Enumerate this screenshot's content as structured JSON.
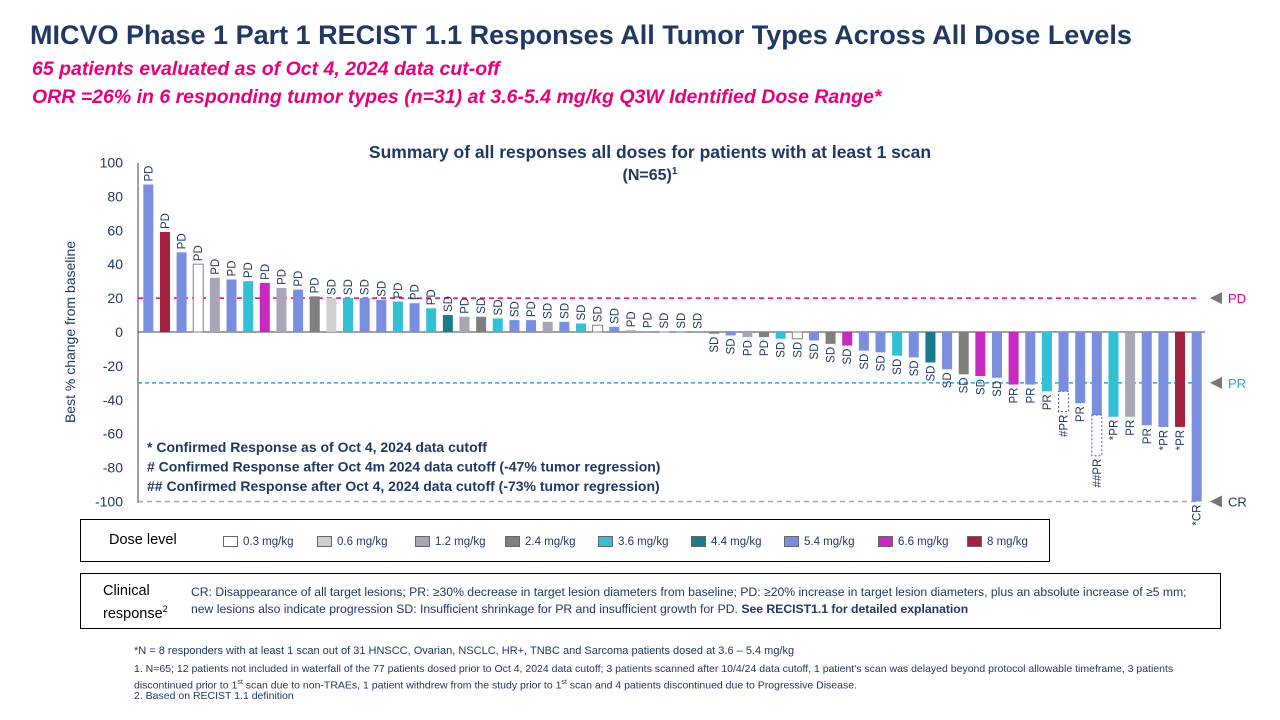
{
  "title": "MICVO Phase 1 Part 1 RECIST 1.1 Responses All Tumor Types Across All Dose Levels",
  "subtitle1": "65 patients evaluated as of Oct 4, 2024 data cut-off",
  "subtitle2": "ORR =26% in 6 responding tumor types (n=31) at 3.6-5.4 mg/kg Q3W Identified Dose Range*",
  "chart_data": {
    "type": "bar",
    "title": "Summary of all responses all doses for patients with at least 1 scan",
    "subtitle": "(N=65)",
    "subtitle_sup": "1",
    "ylabel": "Best % change from baseline",
    "xlabel": "",
    "ylim": [
      -100,
      100
    ],
    "yticks": [
      "100",
      "80",
      "60",
      "40",
      "20",
      "0",
      "-20",
      "-40",
      "-60",
      "-80",
      "-100"
    ],
    "thresholds": [
      {
        "name": "PD",
        "value": 20,
        "color": "#e6007e"
      },
      {
        "name": "PR",
        "value": -30,
        "color": "#2ca3d8"
      },
      {
        "name": "CR",
        "value": -100,
        "color": "#a6a6a6"
      }
    ],
    "bars": [
      {
        "value": 87,
        "dose": "5.4 mg/kg",
        "label": "PD"
      },
      {
        "value": 59,
        "dose": "8 mg/kg",
        "label": "PD"
      },
      {
        "value": 47,
        "dose": "5.4 mg/kg",
        "label": "PD"
      },
      {
        "value": 40,
        "dose": "0.3 mg/kg",
        "label": "PD"
      },
      {
        "value": 32,
        "dose": "1.2 mg/kg",
        "label": "PD"
      },
      {
        "value": 31,
        "dose": "5.4 mg/kg",
        "label": "PD"
      },
      {
        "value": 30,
        "dose": "3.6 mg/kg",
        "label": "PD"
      },
      {
        "value": 29,
        "dose": "6.6 mg/kg",
        "label": "PD"
      },
      {
        "value": 26,
        "dose": "1.2 mg/kg",
        "label": "PD"
      },
      {
        "value": 25,
        "dose": "5.4 mg/kg",
        "label": "PD"
      },
      {
        "value": 21,
        "dose": "2.4 mg/kg",
        "label": "PD"
      },
      {
        "value": 20,
        "dose": "0.6 mg/kg",
        "label": "SD"
      },
      {
        "value": 20,
        "dose": "3.6 mg/kg",
        "label": "SD"
      },
      {
        "value": 20,
        "dose": "5.4 mg/kg",
        "label": "SD"
      },
      {
        "value": 19,
        "dose": "5.4 mg/kg",
        "label": "SD"
      },
      {
        "value": 18,
        "dose": "3.6 mg/kg",
        "label": "PD"
      },
      {
        "value": 17,
        "dose": "5.4 mg/kg",
        "label": "PD"
      },
      {
        "value": 14,
        "dose": "3.6 mg/kg",
        "label": "PD"
      },
      {
        "value": 10,
        "dose": "4.4 mg/kg",
        "label": "SD"
      },
      {
        "value": 9,
        "dose": "1.2 mg/kg",
        "label": "PD"
      },
      {
        "value": 9,
        "dose": "2.4 mg/kg",
        "label": "SD"
      },
      {
        "value": 8,
        "dose": "3.6 mg/kg",
        "label": "SD"
      },
      {
        "value": 7,
        "dose": "5.4 mg/kg",
        "label": "SD"
      },
      {
        "value": 7,
        "dose": "5.4 mg/kg",
        "label": "PD"
      },
      {
        "value": 6,
        "dose": "1.2 mg/kg",
        "label": "SD"
      },
      {
        "value": 6,
        "dose": "5.4 mg/kg",
        "label": "SD"
      },
      {
        "value": 5,
        "dose": "3.6 mg/kg",
        "label": "SD"
      },
      {
        "value": 4,
        "dose": "0.3 mg/kg",
        "label": "SD"
      },
      {
        "value": 3,
        "dose": "5.4 mg/kg",
        "label": "SD"
      },
      {
        "value": 1,
        "dose": "1.2 mg/kg",
        "label": "PD"
      },
      {
        "value": 0.5,
        "dose": "5.4 mg/kg",
        "label": "PD"
      },
      {
        "value": 0.3,
        "dose": "5.4 mg/kg",
        "label": "SD"
      },
      {
        "value": 0.2,
        "dose": "5.4 mg/kg",
        "label": "SD"
      },
      {
        "value": 0.1,
        "dose": "5.4 mg/kg",
        "label": "SD"
      },
      {
        "value": -1,
        "dose": "2.4 mg/kg",
        "label": "SD"
      },
      {
        "value": -2,
        "dose": "5.4 mg/kg",
        "label": "SD"
      },
      {
        "value": -3,
        "dose": "1.2 mg/kg",
        "label": "PD"
      },
      {
        "value": -3,
        "dose": "2.4 mg/kg",
        "label": "PD"
      },
      {
        "value": -4,
        "dose": "3.6 mg/kg",
        "label": "SD"
      },
      {
        "value": -4,
        "dose": "0.3 mg/kg",
        "label": "SD"
      },
      {
        "value": -5,
        "dose": "5.4 mg/kg",
        "label": "SD"
      },
      {
        "value": -7,
        "dose": "2.4 mg/kg",
        "label": "SD"
      },
      {
        "value": -8,
        "dose": "6.6 mg/kg",
        "label": "SD"
      },
      {
        "value": -11,
        "dose": "5.4 mg/kg",
        "label": "SD"
      },
      {
        "value": -12,
        "dose": "5.4 mg/kg",
        "label": "SD"
      },
      {
        "value": -14,
        "dose": "3.6 mg/kg",
        "label": "SD"
      },
      {
        "value": -15,
        "dose": "5.4 mg/kg",
        "label": "SD"
      },
      {
        "value": -18,
        "dose": "4.4 mg/kg",
        "label": "SD"
      },
      {
        "value": -22,
        "dose": "5.4 mg/kg",
        "label": "SD"
      },
      {
        "value": -25,
        "dose": "2.4 mg/kg",
        "label": "SD"
      },
      {
        "value": -26,
        "dose": "6.6 mg/kg",
        "label": "SD"
      },
      {
        "value": -27,
        "dose": "5.4 mg/kg",
        "label": "SD"
      },
      {
        "value": -31,
        "dose": "6.6 mg/kg",
        "label": "PR"
      },
      {
        "value": -31,
        "dose": "5.4 mg/kg",
        "label": "PR"
      },
      {
        "value": -35,
        "dose": "3.6 mg/kg",
        "label": "PR"
      },
      {
        "value": -35,
        "dose": "5.4 mg/kg",
        "label": "#PR",
        "ext": -47
      },
      {
        "value": -42,
        "dose": "5.4 mg/kg",
        "label": "PR"
      },
      {
        "value": -49,
        "dose": "5.4 mg/kg",
        "label": "##PR",
        "ext": -73
      },
      {
        "value": -50,
        "dose": "3.6 mg/kg",
        "label": "*PR"
      },
      {
        "value": -50,
        "dose": "1.2 mg/kg",
        "label": "PR"
      },
      {
        "value": -55,
        "dose": "5.4 mg/kg",
        "label": "PR"
      },
      {
        "value": -56,
        "dose": "5.4 mg/kg",
        "label": "*PR"
      },
      {
        "value": -56,
        "dose": "8 mg/kg",
        "label": "*PR"
      },
      {
        "value": -100,
        "dose": "5.4 mg/kg",
        "label": "*CR"
      }
    ],
    "annotations": [
      "* Confirmed Response as of Oct 4, 2024 data cutoff",
      "# Confirmed Response after Oct 4m 2024 data cutoff (-47% tumor regression)",
      "## Confirmed Response after Oct 4, 2024 data cutoff (-73% tumor regression)"
    ]
  },
  "dose_legend": {
    "title": "Dose level",
    "items": [
      {
        "label": "0.3 mg/kg",
        "color": "#ffffff"
      },
      {
        "label": "0.6 mg/kg",
        "color": "#d0d0d0"
      },
      {
        "label": "1.2 mg/kg",
        "color": "#a8a6b4"
      },
      {
        "label": "2.4 mg/kg",
        "color": "#7f7f7f"
      },
      {
        "label": "3.6 mg/kg",
        "color": "#33c0d6"
      },
      {
        "label": "4.4 mg/kg",
        "color": "#1c7a8e"
      },
      {
        "label": "5.4 mg/kg",
        "color": "#7a8ee0"
      },
      {
        "label": "6.6 mg/kg",
        "color": "#c729c1"
      },
      {
        "label": "8 mg/kg",
        "color": "#a3203f"
      }
    ]
  },
  "clinical": {
    "label_line1": "Clinical",
    "label_line2": "response",
    "label_sup": "2",
    "text": "CR: Disappearance of all target lesions; PR: ≥30% decrease in target lesion diameters from baseline; PD: ≥20% increase in target lesion diameters, plus an absolute increase of ≥5 mm; new lesions also indicate progression SD: Insufficient shrinkage for PR and insufficient growth for PD.",
    "bold_text": "See RECIST1.1 for detailed explanation"
  },
  "footnotes": {
    "star": "*N = 8 responders with at least 1 scan out of 31 HNSCC, Ovarian, NSCLC, HR+, TNBC and Sarcoma patients dosed at 3.6 – 5.4 mg/kg",
    "note1_a": "1.  N=65; 12 patients not included in waterfall of the 77 patients dosed prior to Oct 4, 2024 data cutoff; 3 patients scanned after 10/4/24 data cutoff, 1 patient's scan was delayed beyond protocol allowable timeframe, 3 patients discontinued prior to 1",
    "note1_sup1": "st",
    "note1_b": " scan due to non-TRAEs, 1 patient withdrew from the study prior to 1",
    "note1_sup2": "st",
    "note1_c": " scan and 4 patients discontinued due to Progressive Disease.",
    "note2": "2. Based on RECIST 1.1 definition"
  }
}
